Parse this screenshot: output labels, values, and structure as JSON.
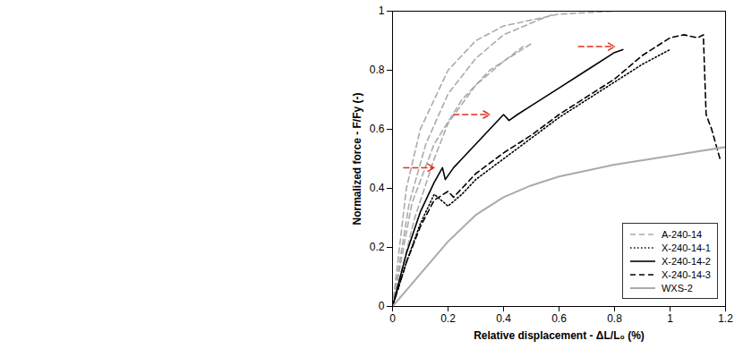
{
  "chart_data": {
    "type": "line",
    "xlabel": "Relative displacement - ΔL/L₀ (%)",
    "ylabel": "Normalized force - F/Fy (-)",
    "xlim": [
      0,
      1.2
    ],
    "ylim": [
      0,
      1
    ],
    "xticks": [
      0,
      0.2,
      0.4,
      0.6,
      0.8,
      1,
      1.2
    ],
    "yticks": [
      0,
      0.2,
      0.4,
      0.6,
      0.8,
      1
    ],
    "grid": false,
    "legend": "bottom-right",
    "series": [
      {
        "name": "A-240-14",
        "color": "#aaaaaa",
        "line_style": "dashed",
        "x": [
          0,
          0.05,
          0.1,
          0.2,
          0.3,
          0.4,
          0.5,
          0.6,
          0.8
        ],
        "values": [
          0,
          0.4,
          0.6,
          0.8,
          0.9,
          0.95,
          0.97,
          0.99,
          1.0
        ]
      },
      {
        "name": "A-240-14",
        "color": "#aaaaaa",
        "line_style": "dashed",
        "x": [
          0,
          0.06,
          0.12,
          0.2,
          0.3,
          0.4,
          0.5,
          0.58
        ],
        "values": [
          0,
          0.35,
          0.55,
          0.72,
          0.84,
          0.92,
          0.96,
          0.99
        ]
      },
      {
        "name": "A-240-14",
        "color": "#aaaaaa",
        "line_style": "dashed",
        "x": [
          0,
          0.08,
          0.15,
          0.2,
          0.3,
          0.4,
          0.47
        ],
        "values": [
          0,
          0.3,
          0.5,
          0.62,
          0.75,
          0.83,
          0.88
        ]
      },
      {
        "name": "A-240-14",
        "color": "#aaaaaa",
        "line_style": "dashed",
        "x": [
          0,
          0.07,
          0.15,
          0.25,
          0.35,
          0.45,
          0.5
        ],
        "values": [
          0,
          0.35,
          0.55,
          0.7,
          0.8,
          0.86,
          0.89
        ]
      },
      {
        "name": "X-240-14-1",
        "color": "#000000",
        "line_style": "dotted",
        "x": [
          0,
          0.05,
          0.1,
          0.15,
          0.2,
          0.25,
          0.3,
          0.4,
          0.5,
          0.6,
          0.7,
          0.8,
          0.9,
          1.0
        ],
        "values": [
          0,
          0.15,
          0.28,
          0.38,
          0.34,
          0.38,
          0.43,
          0.5,
          0.57,
          0.64,
          0.7,
          0.76,
          0.82,
          0.87
        ]
      },
      {
        "name": "X-240-14-2",
        "color": "#000000",
        "line_style": "solid",
        "x": [
          0,
          0.05,
          0.1,
          0.15,
          0.18,
          0.19,
          0.22,
          0.25,
          0.3,
          0.35,
          0.4,
          0.42,
          0.45,
          0.5,
          0.6,
          0.7,
          0.8,
          0.83
        ],
        "values": [
          0,
          0.18,
          0.32,
          0.42,
          0.47,
          0.43,
          0.47,
          0.5,
          0.55,
          0.6,
          0.65,
          0.63,
          0.65,
          0.68,
          0.74,
          0.8,
          0.86,
          0.87
        ]
      },
      {
        "name": "X-240-14-3",
        "color": "#000000",
        "line_style": "dashed",
        "x": [
          0,
          0.05,
          0.1,
          0.15,
          0.2,
          0.22,
          0.3,
          0.4,
          0.5,
          0.6,
          0.7,
          0.8,
          0.9,
          1.0,
          1.05,
          1.1,
          1.12,
          1.13,
          1.15,
          1.18
        ],
        "values": [
          0,
          0.15,
          0.27,
          0.36,
          0.39,
          0.37,
          0.45,
          0.52,
          0.58,
          0.65,
          0.71,
          0.77,
          0.85,
          0.91,
          0.92,
          0.91,
          0.92,
          0.65,
          0.6,
          0.5
        ]
      },
      {
        "name": "WXS-2",
        "color": "#aaaaaa",
        "line_style": "solid",
        "x": [
          0,
          0.1,
          0.2,
          0.3,
          0.4,
          0.5,
          0.6,
          0.8,
          1.0,
          1.2
        ],
        "values": [
          0,
          0.11,
          0.22,
          0.31,
          0.37,
          0.41,
          0.44,
          0.48,
          0.51,
          0.54
        ]
      }
    ],
    "arrows": [
      {
        "x1": 0.04,
        "y1": 0.47,
        "x2": 0.15,
        "y2": 0.47,
        "color": "#e03020",
        "line_style": "dashed"
      },
      {
        "x1": 0.22,
        "y1": 0.65,
        "x2": 0.35,
        "y2": 0.65,
        "color": "#e03020",
        "line_style": "dashed"
      },
      {
        "x1": 0.67,
        "y1": 0.88,
        "x2": 0.8,
        "y2": 0.88,
        "color": "#e03020",
        "line_style": "dashed"
      }
    ]
  }
}
